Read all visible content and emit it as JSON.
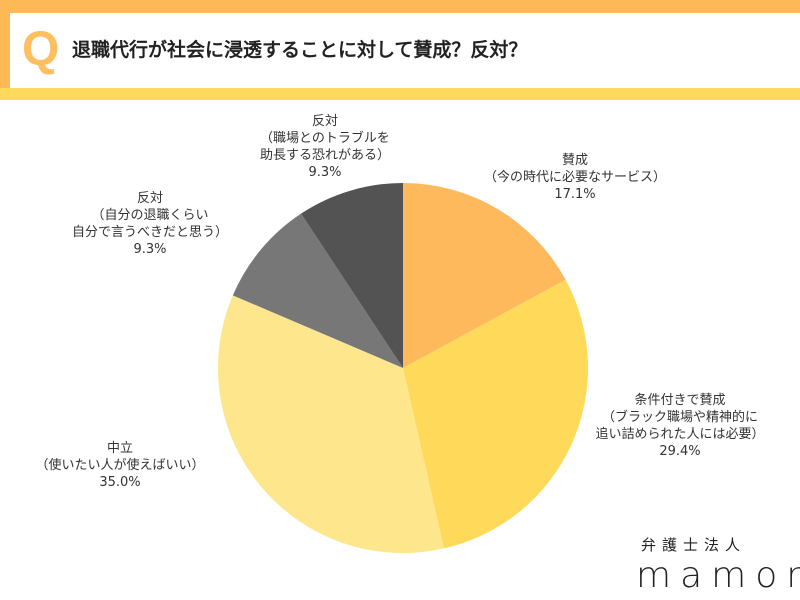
{
  "header": {
    "q_mark": "Q",
    "title": "退職代行が社会に浸透することに対して賛成？反対？"
  },
  "logo": {
    "line1": "弁護士法人",
    "line2": "mamori"
  },
  "chart_data": {
    "type": "pie",
    "title": "退職代行が社会に浸透することに対して賛成？反対？",
    "start": "top, clockwise",
    "slices": [
      {
        "label": "賛成",
        "sub": "（今の時代に必要なサービス）",
        "value": 17.1,
        "value_label": "17.1%",
        "color": "#FDB95C"
      },
      {
        "label": "条件付きで賛成",
        "sub": "（ブラック職場や精神的に\n追い詰められた人には必要）",
        "value": 29.4,
        "value_label": "29.4%",
        "color": "#FED95A"
      },
      {
        "label": "中立",
        "sub": "（使いたい人が使えばいい）",
        "value": 35.0,
        "value_label": "35.0%",
        "color": "#FDE68C"
      },
      {
        "label": "反対",
        "sub": "（自分の退職くらい\n自分で言うべきだと思う）",
        "value": 9.3,
        "value_label": "9.3%",
        "color": "#777777"
      },
      {
        "label": "反対",
        "sub": "（職場とのトラブルを\n助長する恐れがある）",
        "value": 9.3,
        "value_label": "9.3%",
        "color": "#535353"
      }
    ]
  }
}
